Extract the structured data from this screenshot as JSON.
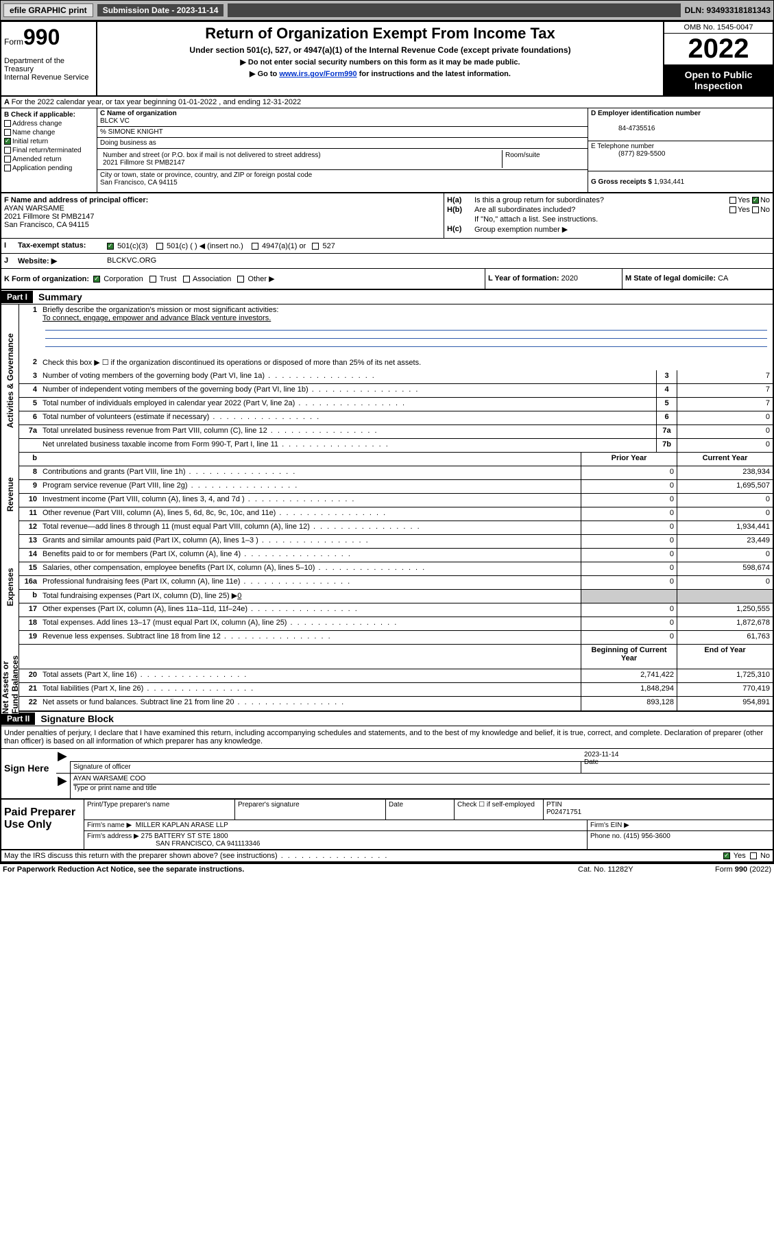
{
  "topbar": {
    "efile": "efile GRAPHIC print",
    "submission_label": "Submission Date - 2023-11-14",
    "dln_label": "DLN: 93493318181343"
  },
  "header": {
    "form_prefix": "Form",
    "form_number": "990",
    "dept": "Department of the Treasury",
    "irs": "Internal Revenue Service",
    "title": "Return of Organization Exempt From Income Tax",
    "sub1": "Under section 501(c), 527, or 4947(a)(1) of the Internal Revenue Code (except private foundations)",
    "sub2": "▶ Do not enter social security numbers on this form as it may be made public.",
    "sub3_prefix": "▶ Go to ",
    "sub3_link": "www.irs.gov/Form990",
    "sub3_suffix": " for instructions and the latest information.",
    "omb": "OMB No. 1545-0047",
    "year": "2022",
    "open_public": "Open to Public Inspection"
  },
  "row_a": "For the 2022 calendar year, or tax year beginning 01-01-2022   , and ending 12-31-2022",
  "section_b": {
    "label": "B Check if applicable:",
    "items": [
      "Address change",
      "Name change",
      "Initial return",
      "Final return/terminated",
      "Amended return",
      "Application pending"
    ],
    "checked_index": 2
  },
  "section_c": {
    "name_label": "C Name of organization",
    "name": "BLCK VC",
    "care_of": "% SIMONE KNIGHT",
    "dba_label": "Doing business as",
    "addr_label": "Number and street (or P.O. box if mail is not delivered to street address)",
    "suite_label": "Room/suite",
    "address": "2021 Fillmore St PMB2147",
    "city_label": "City or town, state or province, country, and ZIP or foreign postal code",
    "city": "San Francisco, CA  94115"
  },
  "section_d": {
    "label": "D Employer identification number",
    "value": "84-4735516"
  },
  "section_e": {
    "label": "E Telephone number",
    "value": "(877) 829-5500"
  },
  "section_g": {
    "label": "G Gross receipts $",
    "value": "1,934,441"
  },
  "section_f": {
    "label": "F  Name and address of principal officer:",
    "name": "AYAN WARSAME",
    "addr1": "2021 Fillmore St PMB2147",
    "addr2": "San Francisco, CA  94115"
  },
  "section_h": {
    "ha_label": "H(a)",
    "ha_text": "Is this a group return for subordinates?",
    "ha_yes": "Yes",
    "ha_no": "No",
    "hb_label": "H(b)",
    "hb_text": "Are all subordinates included?",
    "hb_note": "If \"No,\" attach a list. See instructions.",
    "hc_label": "H(c)",
    "hc_text": "Group exemption number ▶"
  },
  "row_i": {
    "label": "Tax-exempt status:",
    "opt1": "501(c)(3)",
    "opt2": "501(c) (   ) ◀ (insert no.)",
    "opt3": "4947(a)(1) or",
    "opt4": "527"
  },
  "row_j": {
    "label": "Website: ▶",
    "value": "BLCKVC.ORG"
  },
  "row_k": {
    "left_label": "K Form of organization:",
    "opts": [
      "Corporation",
      "Trust",
      "Association",
      "Other ▶"
    ],
    "mid_label": "L Year of formation:",
    "mid_val": "2020",
    "right_label": "M State of legal domicile:",
    "right_val": "CA"
  },
  "part1": {
    "header": "Part I",
    "title": "Summary"
  },
  "side_labels": {
    "ag": "Activities & Governance",
    "rev": "Revenue",
    "exp": "Expenses",
    "na": "Net Assets or Fund Balances"
  },
  "summary": {
    "q1": "Briefly describe the organization's mission or most significant activities:",
    "mission": "To connect, engage, empower and advance Black venture investors.",
    "q2": "Check this box ▶ ☐  if the organization discontinued its operations or disposed of more than 25% of its net assets.",
    "rows_single": [
      {
        "n": "3",
        "d": "Number of voting members of the governing body (Part VI, line 1a)",
        "box": "3",
        "v": "7"
      },
      {
        "n": "4",
        "d": "Number of independent voting members of the governing body (Part VI, line 1b)",
        "box": "4",
        "v": "7"
      },
      {
        "n": "5",
        "d": "Total number of individuals employed in calendar year 2022 (Part V, line 2a)",
        "box": "5",
        "v": "7"
      },
      {
        "n": "6",
        "d": "Total number of volunteers (estimate if necessary)",
        "box": "6",
        "v": "0"
      },
      {
        "n": "7a",
        "d": "Total unrelated business revenue from Part VIII, column (C), line 12",
        "box": "7a",
        "v": "0"
      },
      {
        "n": "",
        "d": "Net unrelated business taxable income from Form 990-T, Part I, line 11",
        "box": "7b",
        "v": "0"
      }
    ],
    "hdr_b": "b",
    "col_prior": "Prior Year",
    "col_current": "Current Year",
    "rows_two": [
      {
        "n": "8",
        "d": "Contributions and grants (Part VIII, line 1h)",
        "p": "0",
        "c": "238,934"
      },
      {
        "n": "9",
        "d": "Program service revenue (Part VIII, line 2g)",
        "p": "0",
        "c": "1,695,507"
      },
      {
        "n": "10",
        "d": "Investment income (Part VIII, column (A), lines 3, 4, and 7d )",
        "p": "0",
        "c": "0"
      },
      {
        "n": "11",
        "d": "Other revenue (Part VIII, column (A), lines 5, 6d, 8c, 9c, 10c, and 11e)",
        "p": "0",
        "c": "0"
      },
      {
        "n": "12",
        "d": "Total revenue—add lines 8 through 11 (must equal Part VIII, column (A), line 12)",
        "p": "0",
        "c": "1,934,441"
      },
      {
        "n": "13",
        "d": "Grants and similar amounts paid (Part IX, column (A), lines 1–3 )",
        "p": "0",
        "c": "23,449"
      },
      {
        "n": "14",
        "d": "Benefits paid to or for members (Part IX, column (A), line 4)",
        "p": "0",
        "c": "0"
      },
      {
        "n": "15",
        "d": "Salaries, other compensation, employee benefits (Part IX, column (A), lines 5–10)",
        "p": "0",
        "c": "598,674"
      },
      {
        "n": "16a",
        "d": "Professional fundraising fees (Part IX, column (A), line 11e)",
        "p": "0",
        "c": "0"
      }
    ],
    "row_16b": {
      "n": "b",
      "d": "Total fundraising expenses (Part IX, column (D), line 25) ▶",
      "val": "0"
    },
    "rows_two_2": [
      {
        "n": "17",
        "d": "Other expenses (Part IX, column (A), lines 11a–11d, 11f–24e)",
        "p": "0",
        "c": "1,250,555"
      },
      {
        "n": "18",
        "d": "Total expenses. Add lines 13–17 (must equal Part IX, column (A), line 25)",
        "p": "0",
        "c": "1,872,678"
      },
      {
        "n": "19",
        "d": "Revenue less expenses. Subtract line 18 from line 12",
        "p": "0",
        "c": "61,763"
      }
    ],
    "col_begin": "Beginning of Current Year",
    "col_end": "End of Year",
    "rows_na": [
      {
        "n": "20",
        "d": "Total assets (Part X, line 16)",
        "p": "2,741,422",
        "c": "1,725,310"
      },
      {
        "n": "21",
        "d": "Total liabilities (Part X, line 26)",
        "p": "1,848,294",
        "c": "770,419"
      },
      {
        "n": "22",
        "d": "Net assets or fund balances. Subtract line 21 from line 20",
        "p": "893,128",
        "c": "954,891"
      }
    ]
  },
  "part2": {
    "header": "Part II",
    "title": "Signature Block"
  },
  "penalty": "Under penalties of perjury, I declare that I have examined this return, including accompanying schedules and statements, and to the best of my knowledge and belief, it is true, correct, and complete. Declaration of preparer (other than officer) is based on all information of which preparer has any knowledge.",
  "sign": {
    "left": "Sign Here",
    "sig_label": "Signature of officer",
    "date_label": "Date",
    "date": "2023-11-14",
    "name_title": "AYAN WARSAME COO",
    "name_label": "Type or print name and title"
  },
  "paid": {
    "left": "Paid Preparer Use Only",
    "h1": "Print/Type preparer's name",
    "h2": "Preparer's signature",
    "h3": "Date",
    "h4_a": "Check ☐ if self-employed",
    "h4_b": "PTIN",
    "ptin": "P02471751",
    "firm_name_label": "Firm's name      ▶",
    "firm_name": "MILLER KAPLAN ARASE LLP",
    "firm_ein_label": "Firm's EIN ▶",
    "firm_addr_label": "Firm's address ▶",
    "firm_addr1": "275 BATTERY ST STE 1800",
    "firm_addr2": "SAN FRANCISCO, CA  941113346",
    "phone_label": "Phone no.",
    "phone": "(415) 956-3600"
  },
  "footer": {
    "discuss": "May the IRS discuss this return with the preparer shown above? (see instructions)",
    "yes": "Yes",
    "no": "No",
    "paperwork": "For Paperwork Reduction Act Notice, see the separate instructions.",
    "cat": "Cat. No. 11282Y",
    "form": "Form 990 (2022)"
  },
  "colors": {
    "link": "#0033cc",
    "check": "#2e7d32",
    "shade": "#cccccc"
  }
}
